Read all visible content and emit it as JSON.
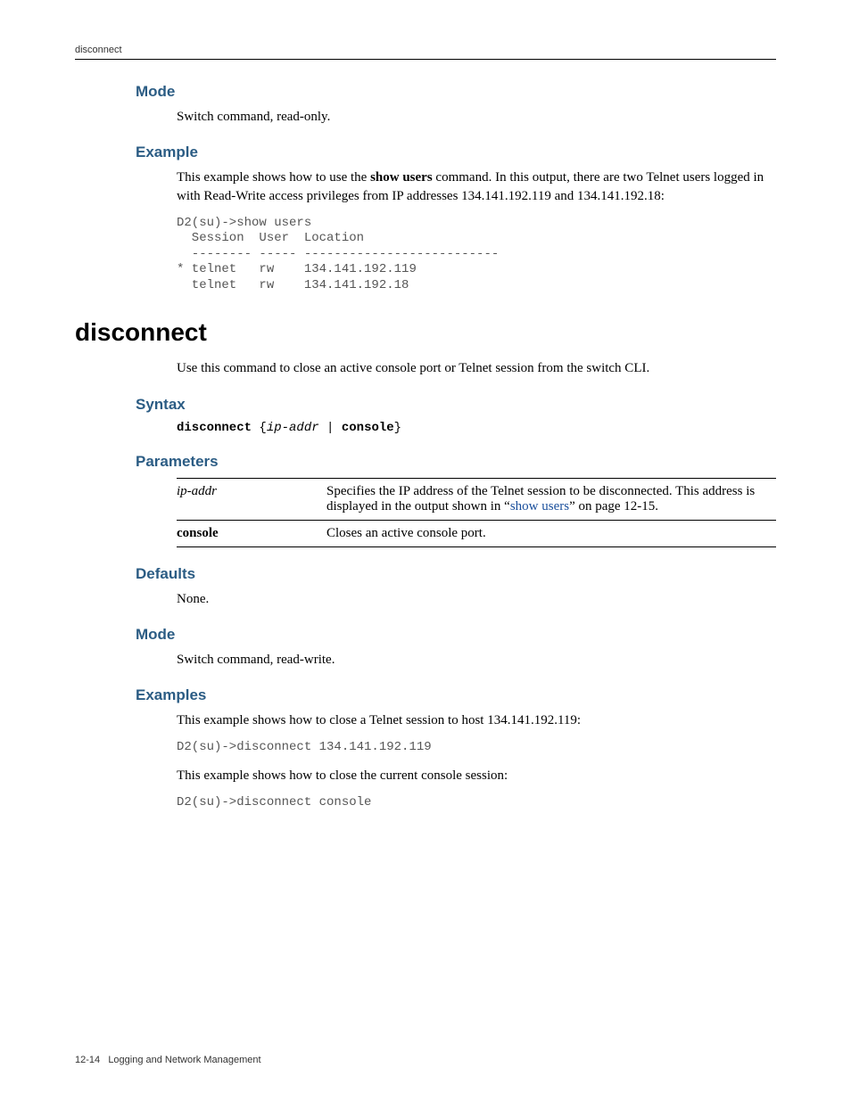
{
  "header": {
    "title": "disconnect"
  },
  "section1": {
    "mode_heading": "Mode",
    "mode_text": "Switch command, read-only.",
    "example_heading": "Example",
    "example_intro_pre": "This example shows how to use the ",
    "example_intro_bold": "show users",
    "example_intro_post": " command. In this output, there are two Telnet users logged in with Read-Write access privileges from IP addresses 134.141.192.119 and 134.141.192.18:",
    "example_code": "D2(su)->show users\n  Session  User  Location\n  -------- ----- --------------------------\n* telnet   rw    134.141.192.119\n  telnet   rw    134.141.192.18"
  },
  "section2": {
    "heading": "disconnect",
    "intro": "Use this command to close an active console port or Telnet session from the switch CLI.",
    "syntax_heading": "Syntax",
    "syntax": {
      "cmd": "disconnect",
      "brace_open": " {",
      "arg": "ip-addr",
      "pipe": " | ",
      "opt": "console",
      "brace_close": "}"
    },
    "params_heading": "Parameters",
    "params": {
      "row1": {
        "name": "ip-addr",
        "desc_pre": "Specifies the IP address of the Telnet session to be disconnected. This address is displayed in the output shown in “",
        "desc_link": "show users",
        "desc_post": "” on page 12-15."
      },
      "row2": {
        "name": "console",
        "desc": "Closes an active console port."
      }
    },
    "defaults_heading": "Defaults",
    "defaults_text": "None.",
    "mode_heading": "Mode",
    "mode_text": "Switch command, read-write.",
    "examples_heading": "Examples",
    "ex1_text": "This example shows how to close a Telnet session to host 134.141.192.119:",
    "ex1_code": "D2(su)->disconnect 134.141.192.119",
    "ex2_text": "This example shows how to close the current console session:",
    "ex2_code": "D2(su)->disconnect console"
  },
  "footer": {
    "page": "12-14",
    "title": "Logging and Network Management"
  },
  "colors": {
    "heading_color": "#2b5c84",
    "code_color": "#555555",
    "link_color": "#1a4f9c",
    "text_color": "#000000",
    "background": "#ffffff"
  },
  "typography": {
    "body_font": "Palatino / Georgia serif",
    "heading_font": "Arial / Helvetica sans-serif",
    "code_font": "Courier New monospace",
    "main_heading_size_pt": 21,
    "sub_heading_size_pt": 13,
    "body_size_pt": 11,
    "code_size_pt": 10.5
  }
}
